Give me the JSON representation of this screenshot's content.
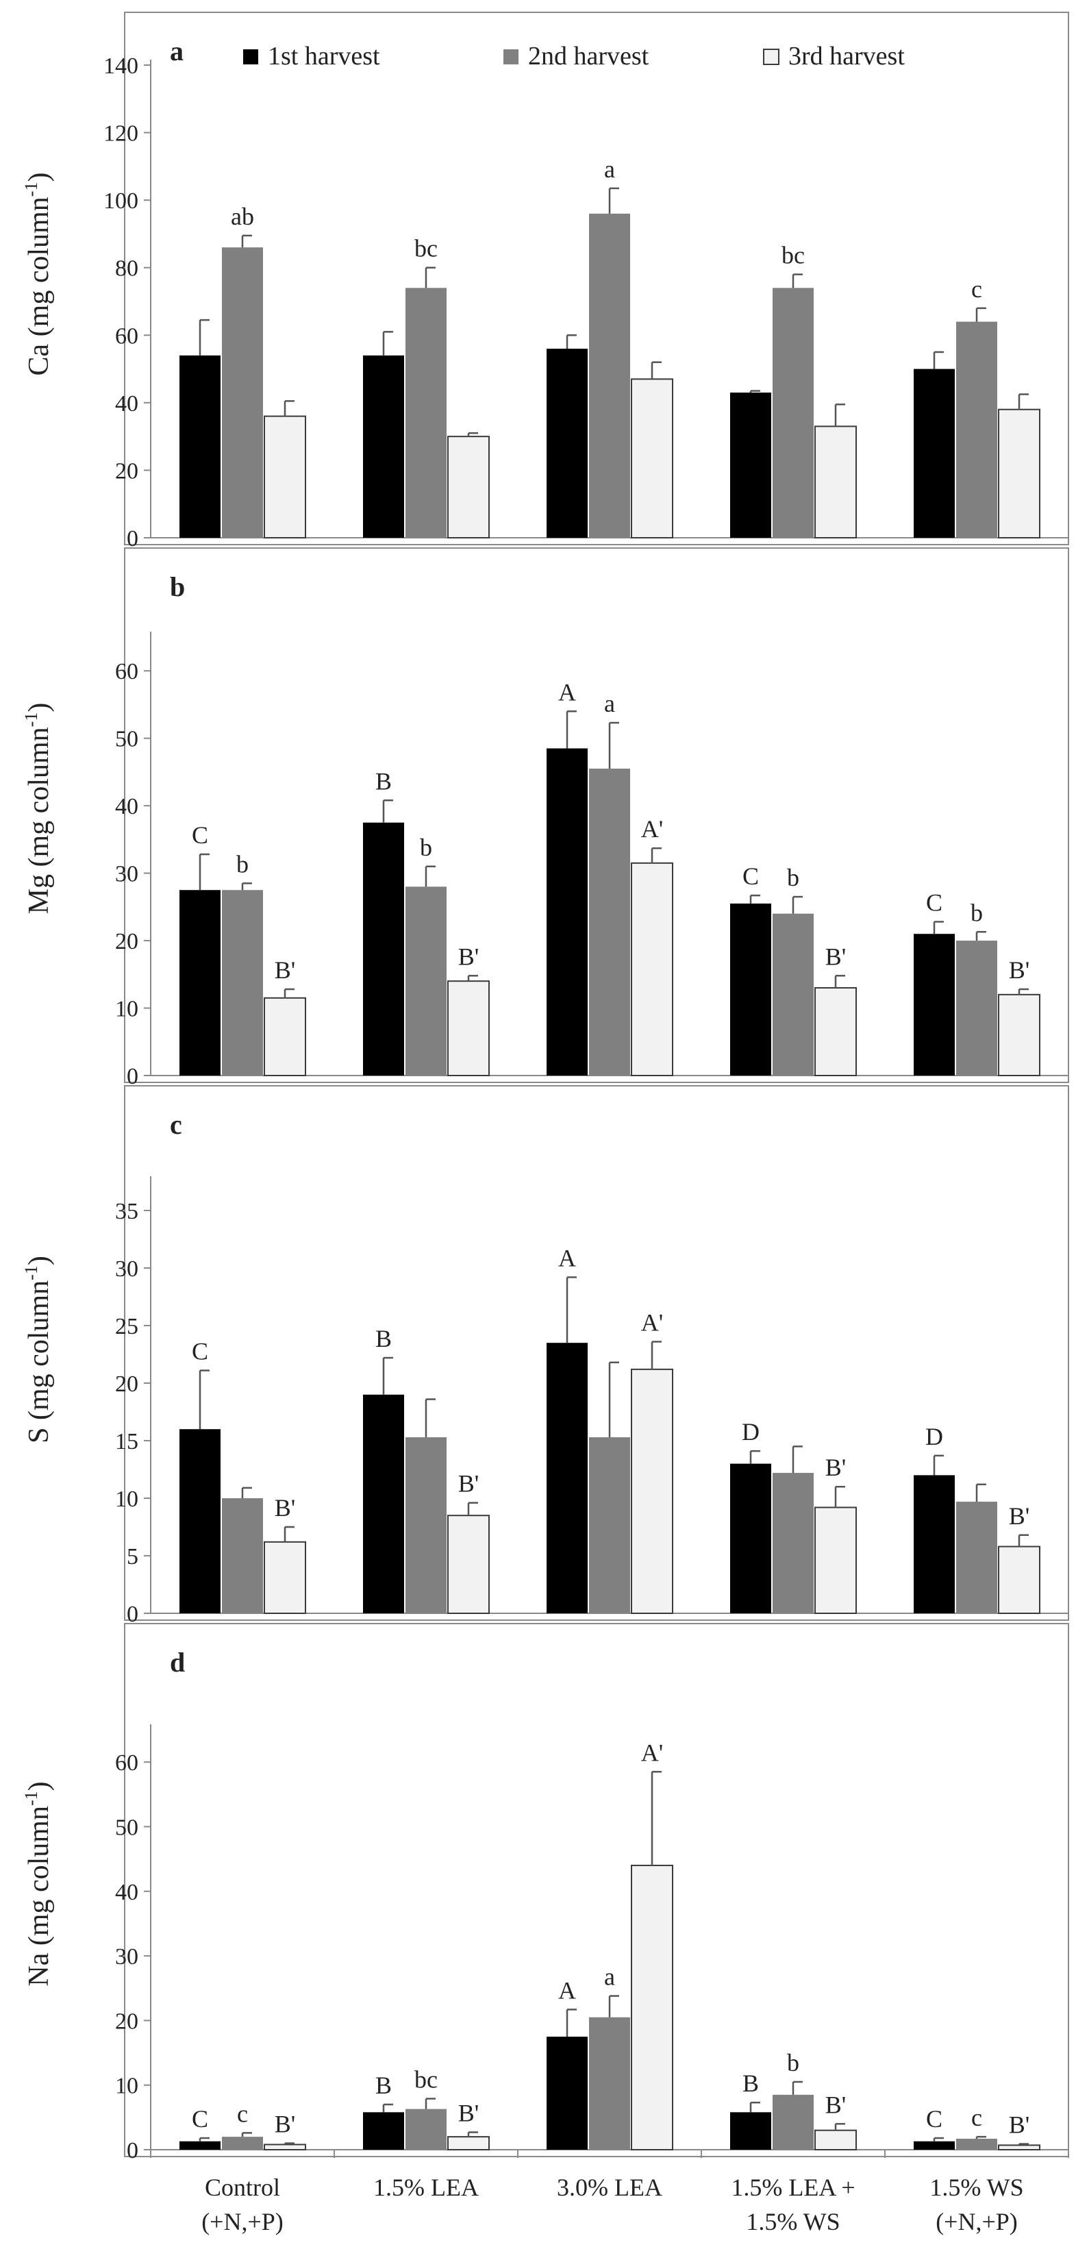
{
  "series": [
    {
      "name": "1st harvest",
      "color": "#000000"
    },
    {
      "name": "2nd harvest",
      "color": "#808080"
    },
    {
      "name": "3rd harvest",
      "color": "#f2f2f2"
    }
  ],
  "categories": [
    [
      "Control",
      "(+N,+P)"
    ],
    [
      "1.5% LEA"
    ],
    [
      "3.0% LEA"
    ],
    [
      "1.5% LEA +",
      "1.5% WS"
    ],
    [
      "1.5% WS",
      "(+N,+P)"
    ]
  ],
  "chart_data": [
    {
      "type": "bar",
      "panel": "a",
      "ylabel": "Ca (mg column",
      "ylabel_sup": "-1",
      "ylabel_close": ")",
      "ylim": [
        0,
        140
      ],
      "yticks": [
        0,
        20,
        40,
        60,
        80,
        100,
        120,
        140
      ],
      "legend": "top",
      "categories": [
        "Control (+N,+P)",
        "1.5% LEA",
        "3.0% LEA",
        "1.5% LEA + 1.5% WS",
        "1.5% WS (+N,+P)"
      ],
      "series": [
        {
          "name": "1st harvest",
          "values": [
            54,
            54,
            56,
            43,
            50
          ],
          "errors": [
            10.5,
            7,
            4,
            0.5,
            5
          ],
          "letters": [
            "",
            "",
            "",
            "",
            ""
          ]
        },
        {
          "name": "2nd harvest",
          "values": [
            86,
            74,
            96,
            74,
            64
          ],
          "errors": [
            3.5,
            6,
            7.5,
            4,
            4
          ],
          "letters": [
            "ab",
            "bc",
            "a",
            "bc",
            "c"
          ]
        },
        {
          "name": "3rd harvest",
          "values": [
            36,
            30,
            47,
            33,
            38
          ],
          "errors": [
            4.5,
            1,
            5,
            6.5,
            4.5
          ],
          "letters": [
            "",
            "",
            "",
            "",
            ""
          ]
        }
      ]
    },
    {
      "type": "bar",
      "panel": "b",
      "ylabel": "Mg (mg column",
      "ylabel_sup": "-1",
      "ylabel_close": ")",
      "ylim": [
        0,
        65
      ],
      "yticks": [
        0,
        10,
        20,
        30,
        40,
        50,
        60
      ],
      "categories": [
        "Control (+N,+P)",
        "1.5% LEA",
        "3.0% LEA",
        "1.5% LEA + 1.5% WS",
        "1.5% WS (+N,+P)"
      ],
      "series": [
        {
          "name": "1st harvest",
          "values": [
            27.5,
            37.5,
            48.5,
            25.5,
            21
          ],
          "errors": [
            5.3,
            3.3,
            5.5,
            1.2,
            1.8
          ],
          "letters": [
            "C",
            "B",
            "A",
            "C",
            "C"
          ]
        },
        {
          "name": "2nd harvest",
          "values": [
            27.5,
            28,
            45.5,
            24,
            20
          ],
          "errors": [
            1,
            3,
            6.8,
            2.5,
            1.3
          ],
          "letters": [
            "b",
            "b",
            "a",
            "b",
            "b"
          ]
        },
        {
          "name": "3rd harvest",
          "values": [
            11.5,
            14,
            31.5,
            13,
            12
          ],
          "errors": [
            1.3,
            0.8,
            2.2,
            1.8,
            0.8
          ],
          "letters": [
            "B'",
            "B'",
            "A'",
            "B'",
            "B'"
          ]
        }
      ]
    },
    {
      "type": "bar",
      "panel": "c",
      "ylabel": "S (mg column",
      "ylabel_sup": "-1",
      "ylabel_close": ")",
      "ylim": [
        0,
        37.5
      ],
      "yticks": [
        0,
        5,
        10,
        15,
        20,
        25,
        30,
        35
      ],
      "categories": [
        "Control (+N,+P)",
        "1.5% LEA",
        "3.0% LEA",
        "1.5% LEA + 1.5% WS",
        "1.5% WS (+N,+P)"
      ],
      "series": [
        {
          "name": "1st harvest",
          "values": [
            16,
            19,
            23.5,
            13,
            12
          ],
          "errors": [
            5.1,
            3.2,
            5.7,
            1.1,
            1.7
          ],
          "letters": [
            "C",
            "B",
            "A",
            "D",
            "D"
          ]
        },
        {
          "name": "2nd harvest",
          "values": [
            10,
            15.3,
            15.3,
            12.2,
            9.7
          ],
          "errors": [
            0.9,
            3.3,
            6.5,
            2.3,
            1.5
          ],
          "letters": [
            "",
            "",
            "",
            "",
            ""
          ]
        },
        {
          "name": "3rd harvest",
          "values": [
            6.2,
            8.5,
            21.2,
            9.2,
            5.8
          ],
          "errors": [
            1.3,
            1.1,
            2.4,
            1.8,
            1
          ],
          "letters": [
            "B'",
            "B'",
            "A'",
            "B'",
            "B'"
          ]
        }
      ]
    },
    {
      "type": "bar",
      "panel": "d",
      "ylabel": "Na (mg column",
      "ylabel_sup": "-1",
      "ylabel_close": ")",
      "ylim": [
        0,
        65
      ],
      "yticks": [
        0,
        10,
        20,
        30,
        40,
        50,
        60
      ],
      "categories": [
        "Control (+N,+P)",
        "1.5% LEA",
        "3.0% LEA",
        "1.5% LEA + 1.5% WS",
        "1.5% WS (+N,+P)"
      ],
      "series": [
        {
          "name": "1st harvest",
          "values": [
            1.3,
            5.8,
            17.5,
            5.8,
            1.3
          ],
          "errors": [
            0.5,
            1.2,
            4.2,
            1.5,
            0.5
          ],
          "letters": [
            "C",
            "B",
            "A",
            "B",
            "C"
          ]
        },
        {
          "name": "2nd harvest",
          "values": [
            2,
            6.3,
            20.5,
            8.5,
            1.7
          ],
          "errors": [
            0.6,
            1.6,
            3.3,
            2,
            0.3
          ],
          "letters": [
            "c",
            "bc",
            "a",
            "b",
            "c"
          ]
        },
        {
          "name": "3rd harvest",
          "values": [
            0.8,
            2,
            44,
            3,
            0.7
          ],
          "errors": [
            0.2,
            0.7,
            14.5,
            1,
            0.2
          ],
          "letters": [
            "B'",
            "B'",
            "A'",
            "B'",
            "B'"
          ]
        }
      ]
    }
  ]
}
